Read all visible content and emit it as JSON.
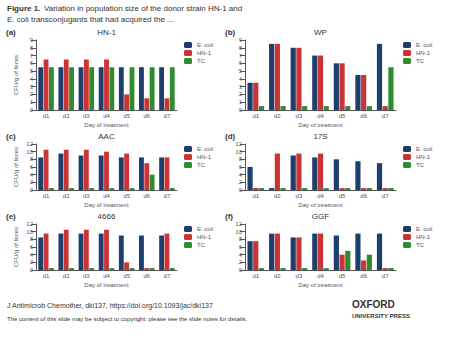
{
  "annotations": [
    "Figure 1.",
    "Variation in population size of the donor strain HN-1 and",
    "E. coli transconjugants that had acquired the ...",
    "J Antimicrob Chemother, dki137, https://doi.org/10.1093/jac/dki137",
    "The content of this slide may be subject to copyright: please see the slide notes for details.",
    "OXFORD",
    "UNIVERSITY PRESS"
  ],
  "chart_data": [
    {
      "type": "bar",
      "title": "HN-1",
      "annotations": [
        "(a)"
      ],
      "xlabel": "Day of treatment",
      "ylabel": "CFU/g of feces",
      "categories": [
        "d1",
        "d2",
        "d3",
        "d4",
        "d5",
        "d6",
        "d7"
      ],
      "series": [
        {
          "name": "E. coli",
          "color": "#1c3f6e",
          "values": [
            5.5,
            5.5,
            5.5,
            5.5,
            5.5,
            5.5,
            5.5
          ]
        },
        {
          "name": "HN-1",
          "color": "#cc3333",
          "values": [
            6.5,
            6.5,
            6.5,
            6.5,
            2.0,
            1.5,
            1.5
          ]
        },
        {
          "name": "TC",
          "color": "#2e8b2e",
          "values": [
            5.5,
            5.5,
            5.5,
            5.5,
            5.5,
            5.5,
            5.5
          ]
        }
      ],
      "ylim": [
        0,
        9
      ],
      "yticks": [
        0,
        1,
        2,
        3,
        4,
        5,
        6,
        7,
        8,
        9
      ],
      "grid": false,
      "legend": "right"
    },
    {
      "type": "bar",
      "title": "WP",
      "annotations": [
        "(b)"
      ],
      "xlabel": "Day of treatment",
      "categories": [
        "d1",
        "d2",
        "d3",
        "d4",
        "d5",
        "d6",
        "d7"
      ],
      "series": [
        {
          "name": "E. coli",
          "color": "#1c3f6e",
          "values": [
            3.5,
            8.5,
            8.0,
            7.0,
            6.0,
            4.5,
            8.5
          ]
        },
        {
          "name": "HN-1",
          "color": "#cc3333",
          "values": [
            3.5,
            8.5,
            8.0,
            7.0,
            6.0,
            4.5,
            0.5
          ]
        },
        {
          "name": "TC",
          "color": "#2e8b2e",
          "values": [
            0.5,
            0.5,
            0.5,
            0.5,
            0.5,
            0.5,
            5.5
          ]
        }
      ],
      "ylim": [
        0,
        9
      ],
      "yticks": [
        0,
        1,
        2,
        3,
        4,
        5,
        6,
        7,
        8,
        9
      ],
      "grid": false,
      "legend": "right"
    },
    {
      "type": "bar",
      "title": "AAC",
      "annotations": [
        "(c)"
      ],
      "xlabel": "Day of treatment",
      "ylabel": "CFU/g of feces",
      "categories": [
        "d1",
        "d2",
        "d3",
        "d4",
        "d5",
        "d6",
        "d7"
      ],
      "series": [
        {
          "name": "E. coli",
          "color": "#1c3f6e",
          "values": [
            8.5,
            9.5,
            9.0,
            9.0,
            8.5,
            8.5,
            8.5
          ]
        },
        {
          "name": "HN-1",
          "color": "#cc3333",
          "values": [
            10.5,
            10.5,
            10.5,
            10.0,
            9.5,
            7.0,
            8.5
          ]
        },
        {
          "name": "TC",
          "color": "#2e8b2e",
          "values": [
            0.5,
            0.5,
            0.5,
            0.5,
            0.5,
            4.0,
            0.5
          ]
        }
      ],
      "ylim": [
        0,
        12
      ],
      "yticks": [
        0,
        2,
        4,
        6,
        8,
        10,
        12
      ],
      "grid": false,
      "legend": "right"
    },
    {
      "type": "bar",
      "title": "17S",
      "annotations": [
        "(d)"
      ],
      "xlabel": "Day of treatment",
      "categories": [
        "d1",
        "d2",
        "d3",
        "d4",
        "d5",
        "d6",
        "d7"
      ],
      "series": [
        {
          "name": "E. coli",
          "color": "#1c3f6e",
          "values": [
            6.0,
            0.5,
            9.0,
            8.5,
            8.0,
            7.5,
            7.0
          ]
        },
        {
          "name": "HN-1",
          "color": "#cc3333",
          "values": [
            0.5,
            9.5,
            9.5,
            9.5,
            0.5,
            0.5,
            0.5
          ]
        },
        {
          "name": "TC",
          "color": "#2e8b2e",
          "values": [
            0.5,
            0.5,
            0.5,
            0.5,
            0.5,
            0.5,
            0.5
          ]
        }
      ],
      "ylim": [
        0,
        12
      ],
      "yticks": [
        0,
        2,
        4,
        6,
        8,
        10,
        12
      ],
      "grid": false,
      "legend": "right"
    },
    {
      "type": "bar",
      "title": "4666",
      "annotations": [
        "(e)"
      ],
      "xlabel": "Day of treatment",
      "ylabel": "CFU/g of feces",
      "categories": [
        "d1",
        "d2",
        "d3",
        "d4",
        "d5",
        "d6",
        "d7"
      ],
      "series": [
        {
          "name": "E. coli",
          "color": "#1c3f6e",
          "values": [
            8.5,
            9.5,
            9.5,
            9.5,
            9.0,
            9.0,
            9.0
          ]
        },
        {
          "name": "HN-1",
          "color": "#cc3333",
          "values": [
            9.5,
            10.5,
            10.5,
            10.5,
            2.0,
            0.5,
            9.5
          ]
        },
        {
          "name": "TC",
          "color": "#2e8b2e",
          "values": [
            0.5,
            0.5,
            0.5,
            0.5,
            0.5,
            0.5,
            0.5
          ]
        }
      ],
      "ylim": [
        0,
        12
      ],
      "yticks": [
        0,
        2,
        4,
        6,
        8,
        10,
        12
      ],
      "grid": false,
      "legend": "right"
    },
    {
      "type": "bar",
      "title": "GGF",
      "annotations": [
        "(f)"
      ],
      "xlabel": "Day of treatment",
      "categories": [
        "d1",
        "d2",
        "d3",
        "d4",
        "d5",
        "d6",
        "d7"
      ],
      "series": [
        {
          "name": "E. coli",
          "color": "#1c3f6e",
          "values": [
            7.5,
            9.5,
            8.5,
            9.5,
            9.0,
            9.5,
            9.5
          ]
        },
        {
          "name": "HN-1",
          "color": "#cc3333",
          "values": [
            7.5,
            9.5,
            8.5,
            9.5,
            4.0,
            2.5,
            0.5
          ]
        },
        {
          "name": "TC",
          "color": "#2e8b2e",
          "values": [
            0.5,
            0.5,
            0.5,
            0.5,
            5.0,
            4.0,
            0.5
          ]
        }
      ],
      "ylim": [
        0,
        12
      ],
      "yticks": [
        0,
        2,
        4,
        6,
        8,
        10,
        12
      ],
      "grid": false,
      "legend": "right"
    }
  ]
}
